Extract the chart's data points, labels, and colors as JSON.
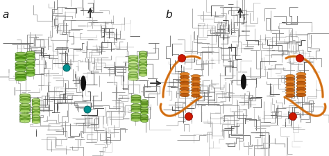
{
  "fig_width": 4.74,
  "fig_height": 2.25,
  "dpi": 100,
  "background_color": "#ffffff",
  "label_a": "a",
  "label_b": "b",
  "label_fontsize": 11,
  "arrow_color": "#2a2a2a",
  "green_light": "#9acd52",
  "green_dark": "#6aaa28",
  "green_bright": "#78c832",
  "teal_color": "#009090",
  "orange_color": "#e07818",
  "orange_dark": "#b85800",
  "red_color": "#cc1800",
  "protein_mid": "#888888",
  "protein_dark": "#444444",
  "protein_light": "#bbbbbb",
  "ellipse_color": "#1a1a1a"
}
